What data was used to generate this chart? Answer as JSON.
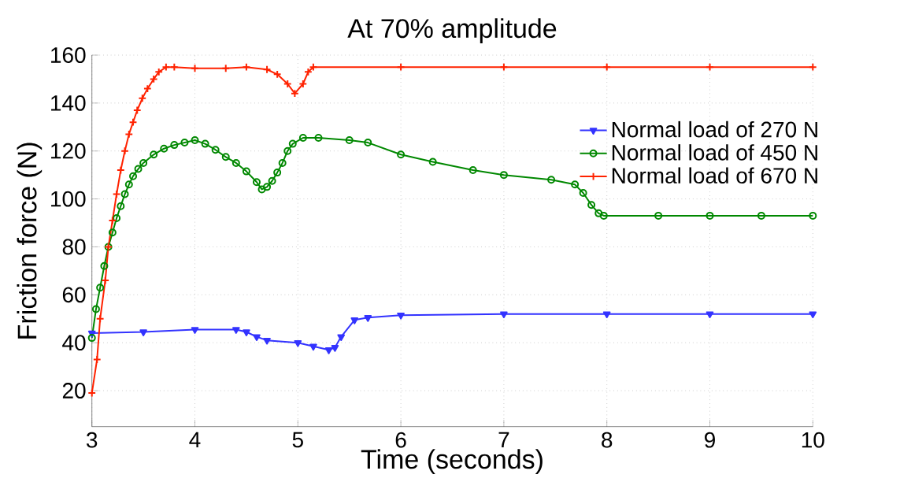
{
  "chart_data": {
    "type": "line",
    "title": "At 70% amplitude",
    "xlabel": "Time (seconds)",
    "ylabel": "Friction force (N)",
    "xlim": [
      3,
      10
    ],
    "ylim": [
      5,
      160
    ],
    "xticks": [
      3,
      4,
      5,
      6,
      7,
      8,
      9,
      10
    ],
    "yticks": [
      20,
      40,
      60,
      80,
      100,
      120,
      140,
      160
    ],
    "grid": true,
    "legend": "top right",
    "line_style": "solid",
    "series": [
      {
        "name": "Normal load of 270 N",
        "color": "#3333ff",
        "marker": "triangle",
        "x": [
          3,
          3.5,
          4,
          4.4,
          4.5,
          4.6,
          4.7,
          5,
          5.15,
          5.3,
          5.36,
          5.42,
          5.55,
          5.68,
          6,
          7,
          8,
          9,
          10
        ],
        "values": [
          44,
          44.5,
          45.5,
          45.5,
          44.5,
          42.5,
          41,
          40,
          38.5,
          37,
          38,
          42.5,
          49.5,
          50.5,
          51.5,
          52,
          52,
          52,
          52
        ]
      },
      {
        "name": "Normal load of 450 N",
        "color": "#008800",
        "marker": "circle",
        "x": [
          3,
          3.04,
          3.08,
          3.12,
          3.16,
          3.2,
          3.24,
          3.28,
          3.32,
          3.36,
          3.4,
          3.45,
          3.5,
          3.6,
          3.7,
          3.8,
          3.9,
          4,
          4.1,
          4.2,
          4.3,
          4.4,
          4.5,
          4.6,
          4.65,
          4.7,
          4.75,
          4.8,
          4.85,
          4.9,
          4.95,
          5.05,
          5.2,
          5.5,
          5.68,
          6,
          6.31,
          6.7,
          7,
          7.46,
          7.69,
          7.77,
          7.85,
          7.92,
          7.97,
          8.5,
          9,
          9.5,
          10
        ],
        "values": [
          42,
          54,
          63,
          72,
          80,
          86,
          92,
          97,
          102,
          106,
          109.5,
          112.5,
          115,
          118.5,
          121,
          122.5,
          123.5,
          124.5,
          123,
          120.5,
          117.5,
          115,
          111.5,
          107,
          104,
          105,
          107.5,
          111,
          115,
          120,
          123,
          125.5,
          125.5,
          124.5,
          123.5,
          118.5,
          115.5,
          112,
          110,
          108,
          106,
          102.5,
          97.5,
          94,
          93,
          93,
          93,
          93,
          93
        ]
      },
      {
        "name": "Normal load of 670 N",
        "color": "#ff2200",
        "marker": "cross",
        "x": [
          3,
          3.05,
          3.08,
          3.13,
          3.16,
          3.2,
          3.24,
          3.28,
          3.32,
          3.36,
          3.4,
          3.44,
          3.49,
          3.54,
          3.6,
          3.65,
          3.72,
          3.8,
          4,
          4.3,
          4.5,
          4.7,
          4.8,
          4.9,
          4.97,
          5.05,
          5.1,
          5.15,
          6,
          7,
          8,
          9,
          10
        ],
        "values": [
          19,
          33,
          50,
          66,
          80,
          91,
          102,
          112,
          120,
          127,
          132,
          137,
          142,
          146,
          150,
          153,
          155,
          155,
          154.5,
          154.5,
          155,
          154,
          152,
          148,
          144,
          148,
          153,
          155,
          155,
          155,
          155,
          155,
          155
        ]
      }
    ]
  }
}
